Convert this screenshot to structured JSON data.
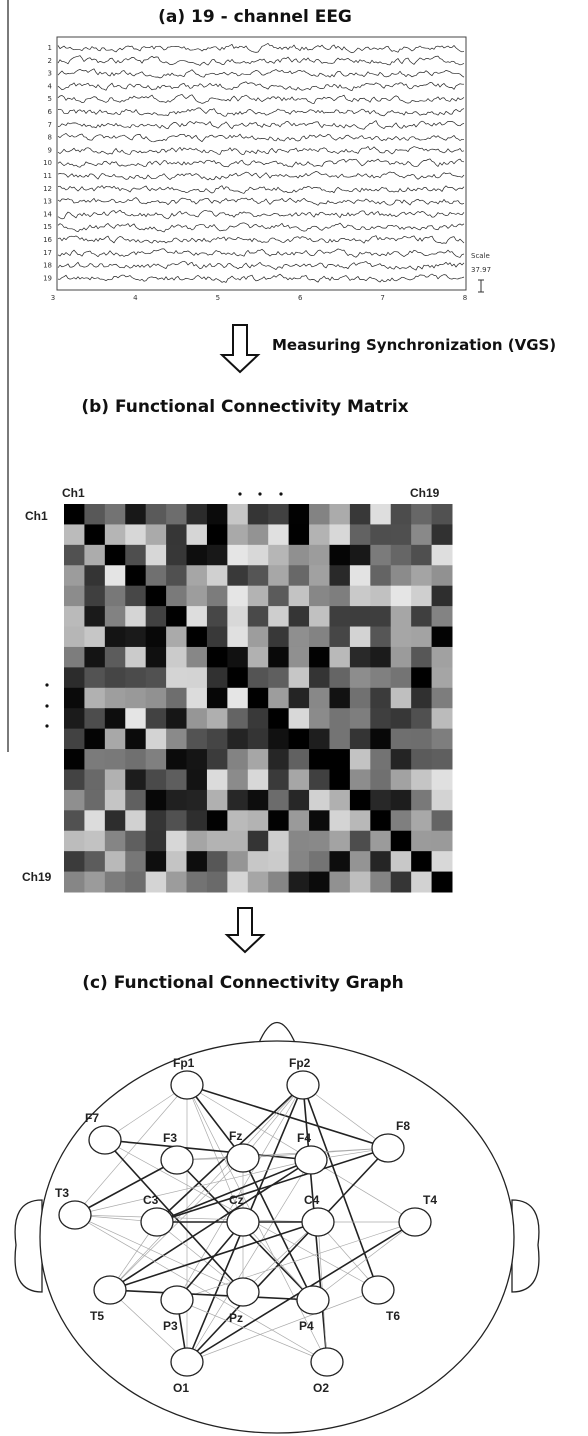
{
  "panel_a": {
    "title": "(a) 19 - channel EEG",
    "channels": [
      1,
      2,
      3,
      4,
      5,
      6,
      7,
      8,
      9,
      10,
      11,
      12,
      13,
      14,
      15,
      16,
      17,
      18,
      19
    ],
    "x_ticks": [
      3,
      4,
      5,
      6,
      7,
      8
    ],
    "scale_label": "Scale",
    "scale_value": "37.97"
  },
  "arrow_label": "Measuring Synchronization (VGS)",
  "panel_b": {
    "title": "(b) Functional Connectivity Matrix",
    "top_left": "Ch1",
    "top_right": "Ch19",
    "left_top": "Ch1",
    "left_bottom": "Ch19"
  },
  "panel_c": {
    "title": "(c) Functional Connectivity Graph",
    "nodes": [
      {
        "label": "Fp1"
      },
      {
        "label": "Fp2"
      },
      {
        "label": "F7"
      },
      {
        "label": "F3"
      },
      {
        "label": "Fz"
      },
      {
        "label": "F4"
      },
      {
        "label": "F8"
      },
      {
        "label": "T3"
      },
      {
        "label": "C3"
      },
      {
        "label": "Cz"
      },
      {
        "label": "C4"
      },
      {
        "label": "T4"
      },
      {
        "label": "T5"
      },
      {
        "label": "P3"
      },
      {
        "label": "Pz"
      },
      {
        "label": "P4"
      },
      {
        "label": "T6"
      },
      {
        "label": "O1"
      },
      {
        "label": "O2"
      }
    ]
  }
}
